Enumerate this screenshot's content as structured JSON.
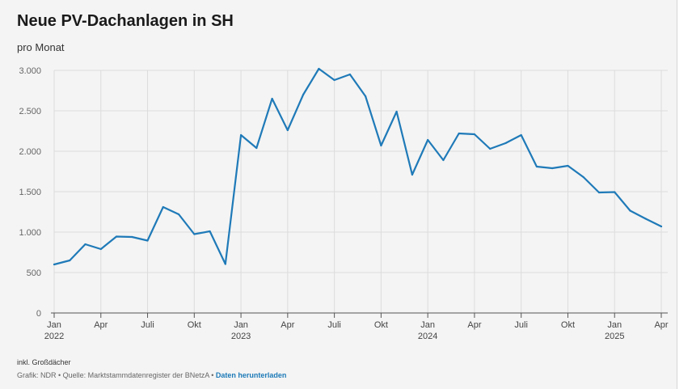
{
  "colors": {
    "line": "#1f7ab8",
    "grid": "#dcdcdc",
    "axis": "#555555",
    "link": "#1d7ab8"
  },
  "footer": {
    "note": "inkl. Großdächer",
    "credit": "Grafik: NDR • Quelle: Marktstammdatenregister der BNetzA •",
    "download_label": "Daten herunterladen"
  },
  "chart_data": {
    "type": "line",
    "title": "Neue PV-Dachanlagen in SH",
    "subtitle": "pro Monat",
    "xlabel": "",
    "ylabel": "",
    "ylim": [
      0,
      3000
    ],
    "grid": true,
    "y_ticks": [
      {
        "value": 0,
        "label": "0"
      },
      {
        "value": 500,
        "label": "500"
      },
      {
        "value": 1000,
        "label": "1.000"
      },
      {
        "value": 1500,
        "label": "1.500"
      },
      {
        "value": 2000,
        "label": "2.000"
      },
      {
        "value": 2500,
        "label": "2.500"
      },
      {
        "value": 3000,
        "label": "3.000"
      }
    ],
    "x_ticks": [
      {
        "index": 0,
        "label": "Jan",
        "year": "2022"
      },
      {
        "index": 3,
        "label": "Apr"
      },
      {
        "index": 6,
        "label": "Juli"
      },
      {
        "index": 9,
        "label": "Okt"
      },
      {
        "index": 12,
        "label": "Jan",
        "year": "2023"
      },
      {
        "index": 15,
        "label": "Apr"
      },
      {
        "index": 18,
        "label": "Juli"
      },
      {
        "index": 21,
        "label": "Okt"
      },
      {
        "index": 24,
        "label": "Jan",
        "year": "2024"
      },
      {
        "index": 27,
        "label": "Apr"
      },
      {
        "index": 30,
        "label": "Juli"
      },
      {
        "index": 33,
        "label": "Okt"
      },
      {
        "index": 36,
        "label": "Jan",
        "year": "2025"
      },
      {
        "index": 39,
        "label": "Apr"
      }
    ],
    "series": [
      {
        "x": [
          "2022-01",
          "2022-02",
          "2022-03",
          "2022-04",
          "2022-05",
          "2022-06",
          "2022-07",
          "2022-08",
          "2022-09",
          "2022-10",
          "2022-11",
          "2022-12",
          "2023-01",
          "2023-02",
          "2023-03",
          "2023-04",
          "2023-05",
          "2023-06",
          "2023-07",
          "2023-08",
          "2023-09",
          "2023-10",
          "2023-11",
          "2023-12",
          "2024-01",
          "2024-02",
          "2024-03",
          "2024-04",
          "2024-05",
          "2024-06",
          "2024-07",
          "2024-08",
          "2024-09",
          "2024-10",
          "2024-11",
          "2024-12",
          "2025-01",
          "2025-02",
          "2025-03",
          "2025-04"
        ],
        "values": [
          600,
          650,
          850,
          790,
          945,
          940,
          895,
          1310,
          1220,
          975,
          1010,
          605,
          2200,
          2040,
          2650,
          2260,
          2700,
          3020,
          2880,
          2950,
          2680,
          2070,
          2490,
          1710,
          2140,
          1890,
          2220,
          2210,
          2030,
          2100,
          2200,
          1810,
          1790,
          1820,
          1680,
          1490,
          1495,
          1265,
          1165,
          1070
        ]
      }
    ]
  }
}
